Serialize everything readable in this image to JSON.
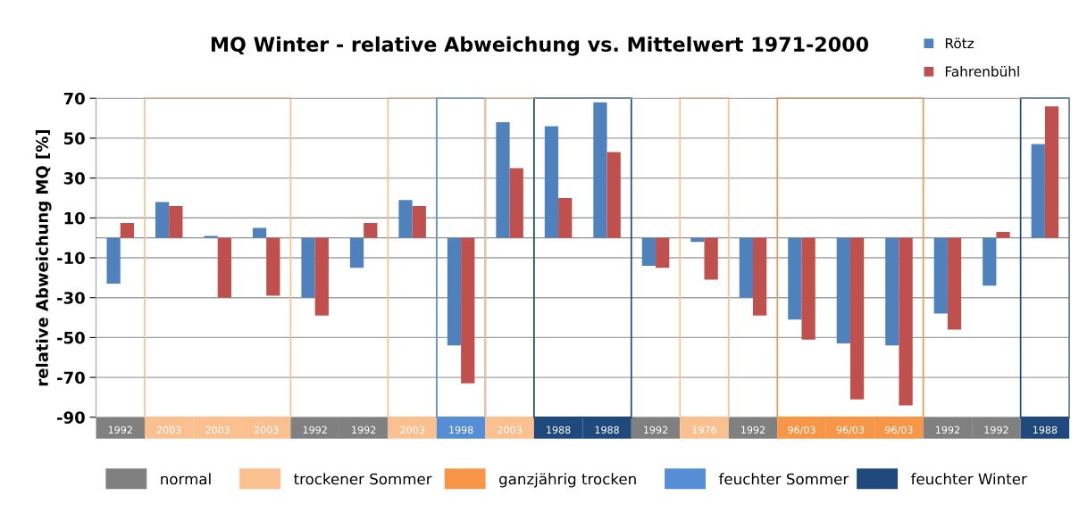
{
  "chart_data": {
    "type": "bar",
    "title": "MQ Winter - relative Abweichung vs. Mittelwert 1971-2000",
    "ylabel": "relative Abweichung MQ [%]",
    "categories": [
      "1992",
      "2003",
      "2003",
      "2003",
      "1992",
      "1992",
      "2003",
      "1998",
      "2003",
      "1988",
      "1988",
      "1992",
      "1976",
      "1992",
      "96/03",
      "96/03",
      "96/03",
      "1992",
      "1992",
      "1988"
    ],
    "series": [
      {
        "name": "Rötz",
        "color": "#4f81bd",
        "values": [
          -23,
          18,
          1,
          5,
          -30,
          -15,
          19,
          -54,
          58,
          56,
          68,
          -14,
          -2,
          -30,
          -41,
          -53,
          -54,
          -38,
          -24,
          47
        ]
      },
      {
        "name": "Fahrenbühl",
        "color": "#c0504d",
        "values": [
          7.5,
          16,
          -30,
          -29,
          -39,
          7.5,
          16,
          -73,
          35,
          20,
          43,
          -15,
          -21,
          -39,
          -51,
          -81,
          -84,
          -46,
          3,
          66
        ]
      }
    ],
    "ylim": [
      -90,
      70
    ],
    "yticks": [
      -90,
      -70,
      -50,
      -30,
      -10,
      10,
      30,
      50,
      70
    ],
    "grid": "y",
    "legend": "top right",
    "annotations": [
      "normal",
      "trockener Sommer",
      "ganzjährig trocken",
      "feuchter Sommer",
      "feuchter Winter"
    ]
  }
}
